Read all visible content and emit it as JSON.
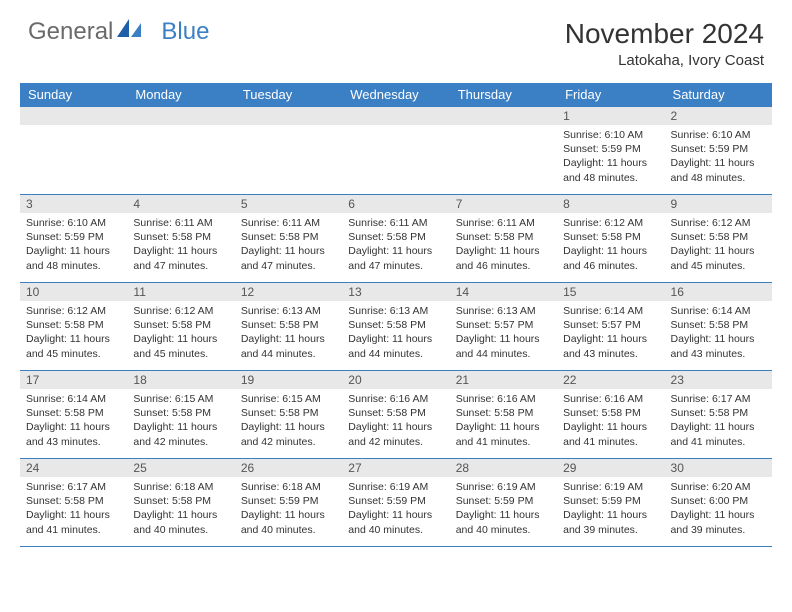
{
  "brand": {
    "part1": "General",
    "part2": "Blue"
  },
  "title": "November 2024",
  "location": "Latokaha, Ivory Coast",
  "colors": {
    "header_bg": "#3b7fc4",
    "header_text": "#ffffff",
    "daynum_bg": "#e8e8e8",
    "border": "#3b7fc4",
    "body_bg": "#ffffff",
    "text": "#333333"
  },
  "weekdays": [
    "Sunday",
    "Monday",
    "Tuesday",
    "Wednesday",
    "Thursday",
    "Friday",
    "Saturday"
  ],
  "first_weekday_index": 5,
  "days": [
    {
      "n": 1,
      "sunrise": "6:10 AM",
      "sunset": "5:59 PM",
      "daylight": "11 hours and 48 minutes."
    },
    {
      "n": 2,
      "sunrise": "6:10 AM",
      "sunset": "5:59 PM",
      "daylight": "11 hours and 48 minutes."
    },
    {
      "n": 3,
      "sunrise": "6:10 AM",
      "sunset": "5:59 PM",
      "daylight": "11 hours and 48 minutes."
    },
    {
      "n": 4,
      "sunrise": "6:11 AM",
      "sunset": "5:58 PM",
      "daylight": "11 hours and 47 minutes."
    },
    {
      "n": 5,
      "sunrise": "6:11 AM",
      "sunset": "5:58 PM",
      "daylight": "11 hours and 47 minutes."
    },
    {
      "n": 6,
      "sunrise": "6:11 AM",
      "sunset": "5:58 PM",
      "daylight": "11 hours and 47 minutes."
    },
    {
      "n": 7,
      "sunrise": "6:11 AM",
      "sunset": "5:58 PM",
      "daylight": "11 hours and 46 minutes."
    },
    {
      "n": 8,
      "sunrise": "6:12 AM",
      "sunset": "5:58 PM",
      "daylight": "11 hours and 46 minutes."
    },
    {
      "n": 9,
      "sunrise": "6:12 AM",
      "sunset": "5:58 PM",
      "daylight": "11 hours and 45 minutes."
    },
    {
      "n": 10,
      "sunrise": "6:12 AM",
      "sunset": "5:58 PM",
      "daylight": "11 hours and 45 minutes."
    },
    {
      "n": 11,
      "sunrise": "6:12 AM",
      "sunset": "5:58 PM",
      "daylight": "11 hours and 45 minutes."
    },
    {
      "n": 12,
      "sunrise": "6:13 AM",
      "sunset": "5:58 PM",
      "daylight": "11 hours and 44 minutes."
    },
    {
      "n": 13,
      "sunrise": "6:13 AM",
      "sunset": "5:58 PM",
      "daylight": "11 hours and 44 minutes."
    },
    {
      "n": 14,
      "sunrise": "6:13 AM",
      "sunset": "5:57 PM",
      "daylight": "11 hours and 44 minutes."
    },
    {
      "n": 15,
      "sunrise": "6:14 AM",
      "sunset": "5:57 PM",
      "daylight": "11 hours and 43 minutes."
    },
    {
      "n": 16,
      "sunrise": "6:14 AM",
      "sunset": "5:58 PM",
      "daylight": "11 hours and 43 minutes."
    },
    {
      "n": 17,
      "sunrise": "6:14 AM",
      "sunset": "5:58 PM",
      "daylight": "11 hours and 43 minutes."
    },
    {
      "n": 18,
      "sunrise": "6:15 AM",
      "sunset": "5:58 PM",
      "daylight": "11 hours and 42 minutes."
    },
    {
      "n": 19,
      "sunrise": "6:15 AM",
      "sunset": "5:58 PM",
      "daylight": "11 hours and 42 minutes."
    },
    {
      "n": 20,
      "sunrise": "6:16 AM",
      "sunset": "5:58 PM",
      "daylight": "11 hours and 42 minutes."
    },
    {
      "n": 21,
      "sunrise": "6:16 AM",
      "sunset": "5:58 PM",
      "daylight": "11 hours and 41 minutes."
    },
    {
      "n": 22,
      "sunrise": "6:16 AM",
      "sunset": "5:58 PM",
      "daylight": "11 hours and 41 minutes."
    },
    {
      "n": 23,
      "sunrise": "6:17 AM",
      "sunset": "5:58 PM",
      "daylight": "11 hours and 41 minutes."
    },
    {
      "n": 24,
      "sunrise": "6:17 AM",
      "sunset": "5:58 PM",
      "daylight": "11 hours and 41 minutes."
    },
    {
      "n": 25,
      "sunrise": "6:18 AM",
      "sunset": "5:58 PM",
      "daylight": "11 hours and 40 minutes."
    },
    {
      "n": 26,
      "sunrise": "6:18 AM",
      "sunset": "5:59 PM",
      "daylight": "11 hours and 40 minutes."
    },
    {
      "n": 27,
      "sunrise": "6:19 AM",
      "sunset": "5:59 PM",
      "daylight": "11 hours and 40 minutes."
    },
    {
      "n": 28,
      "sunrise": "6:19 AM",
      "sunset": "5:59 PM",
      "daylight": "11 hours and 40 minutes."
    },
    {
      "n": 29,
      "sunrise": "6:19 AM",
      "sunset": "5:59 PM",
      "daylight": "11 hours and 39 minutes."
    },
    {
      "n": 30,
      "sunrise": "6:20 AM",
      "sunset": "6:00 PM",
      "daylight": "11 hours and 39 minutes."
    }
  ],
  "labels": {
    "sunrise": "Sunrise:",
    "sunset": "Sunset:",
    "daylight": "Daylight:"
  }
}
